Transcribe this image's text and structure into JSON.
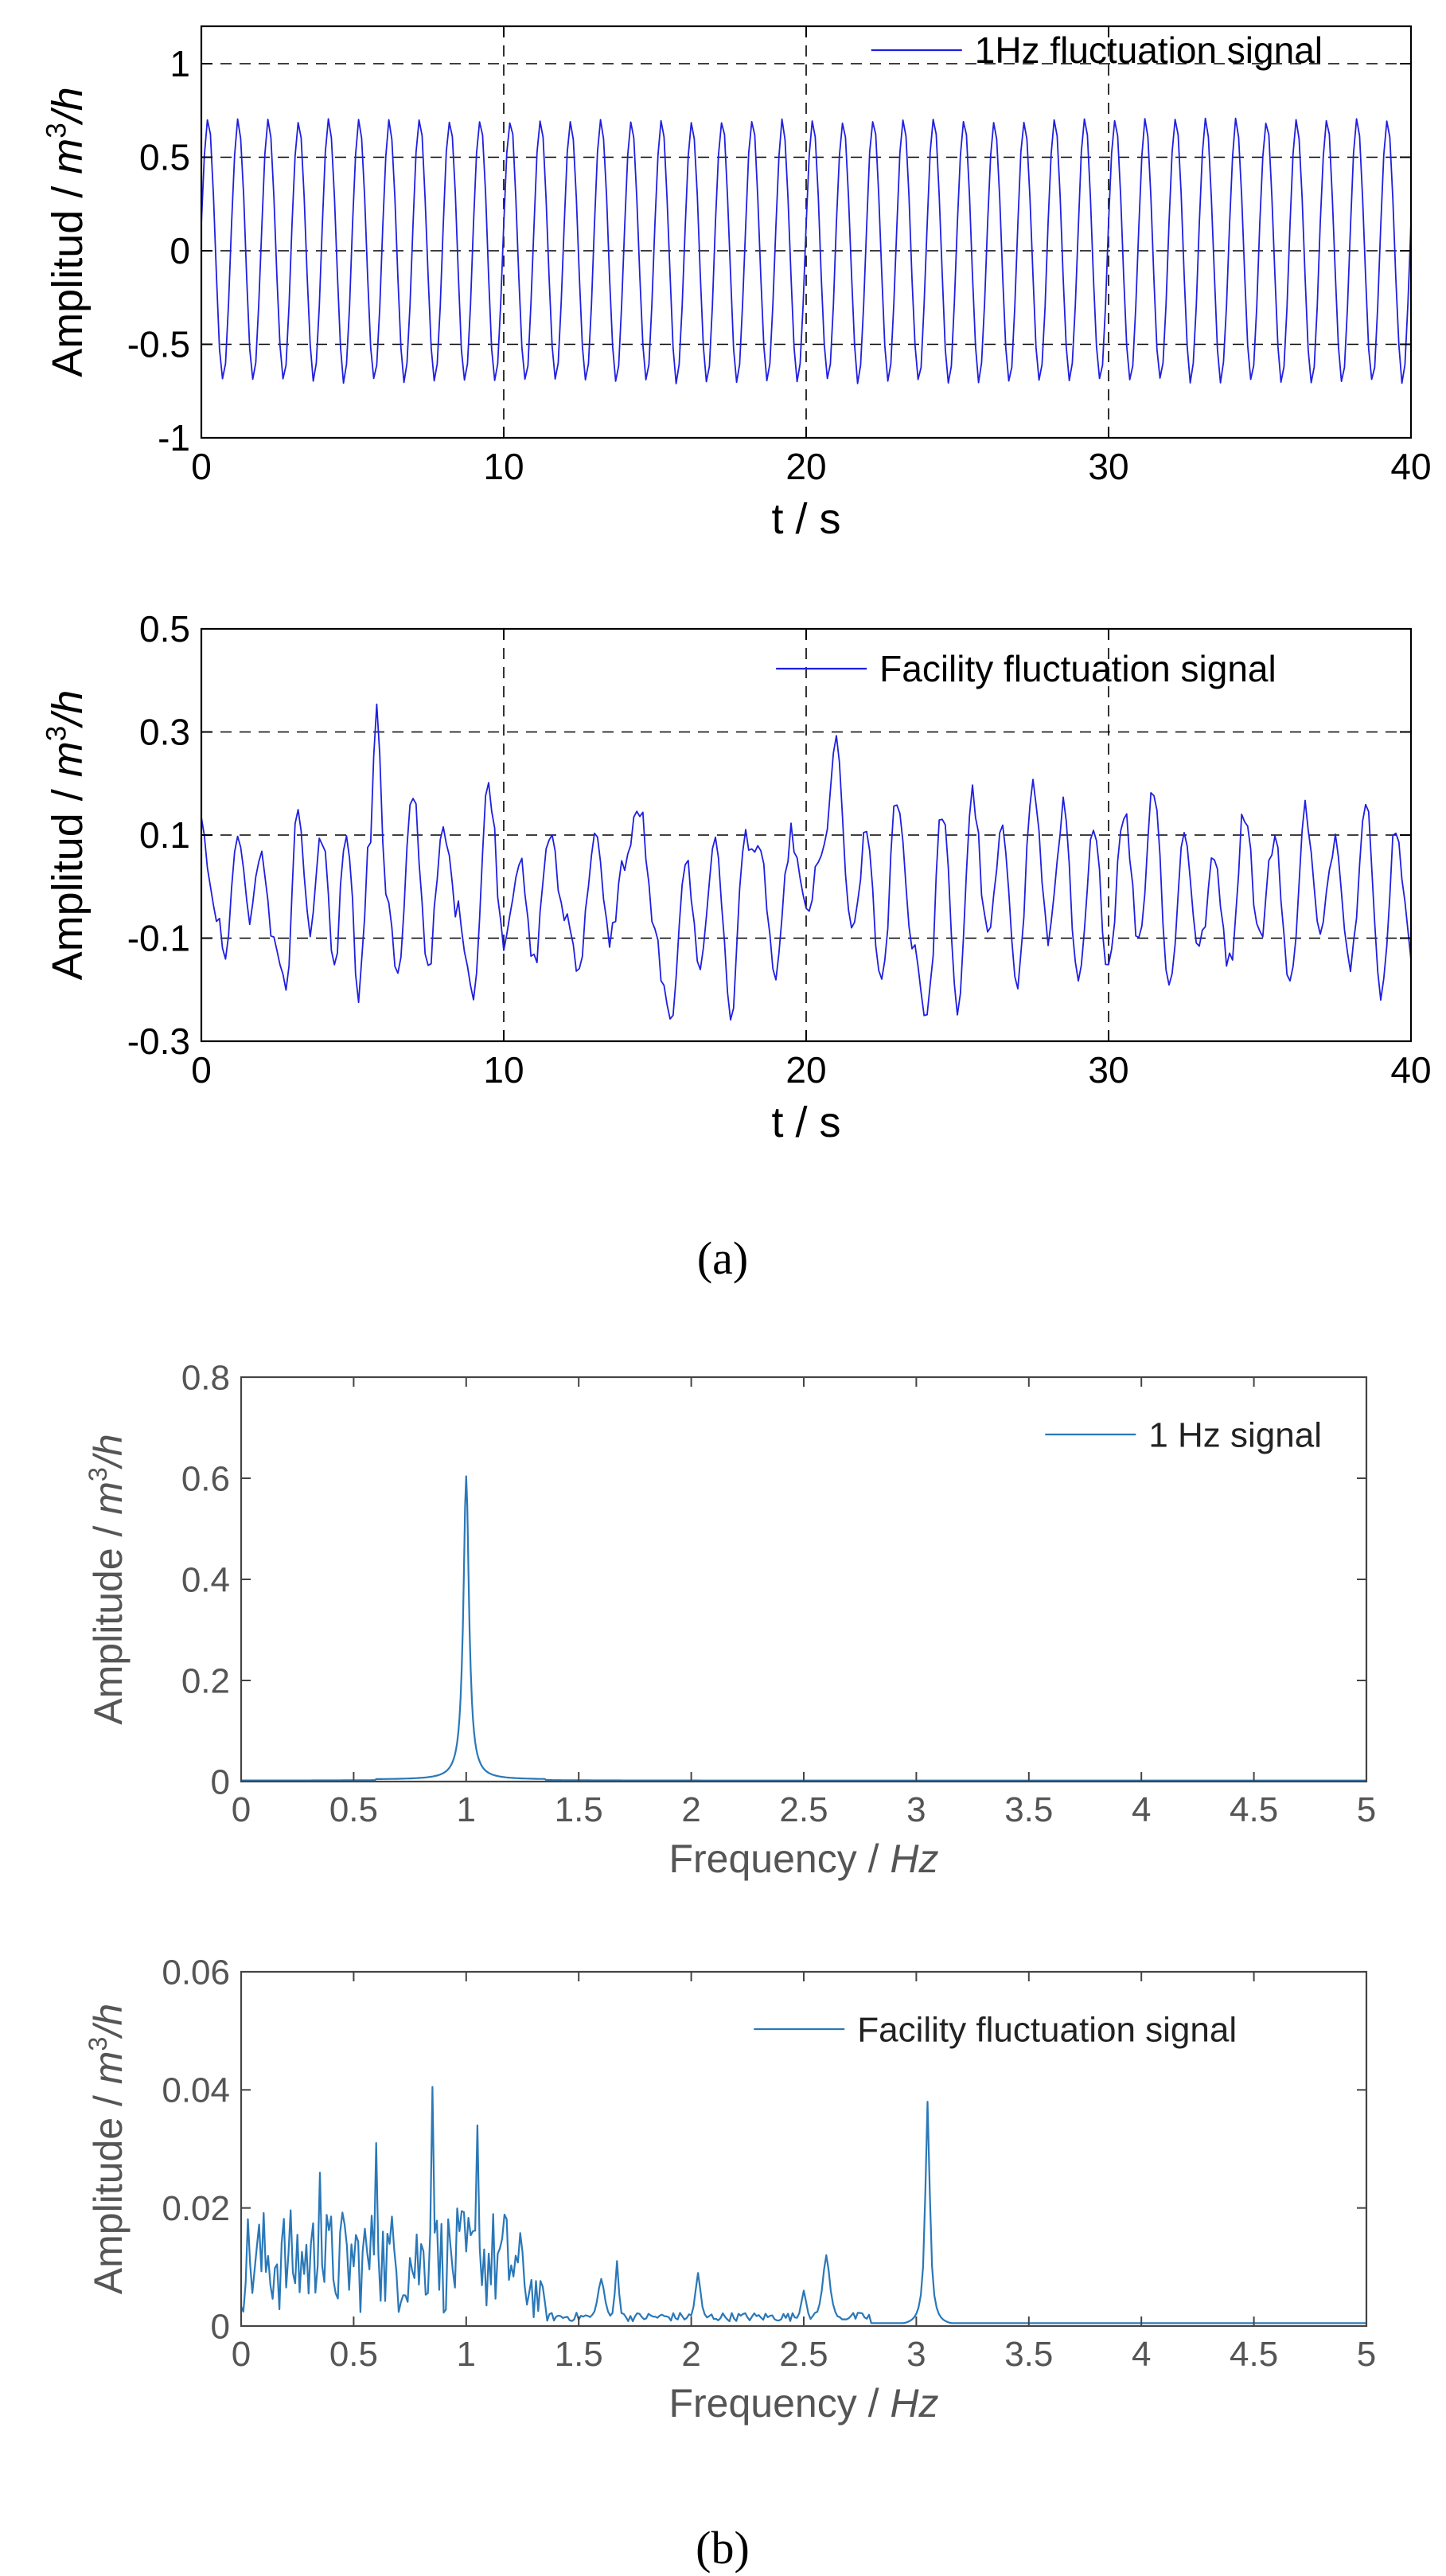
{
  "colors": {
    "series_a": "#1f1fe0",
    "series_b": "#2a78b8",
    "axis_a": "#000000",
    "axis_b": "#444444",
    "label_b": "#555555",
    "grid": "#000000"
  },
  "captions": {
    "a": "(a)",
    "b": "(b)"
  },
  "chart_data": [
    {
      "type": "line",
      "panel": "a-top",
      "title": "",
      "xlabel": "t / s",
      "ylabel": {
        "prefix": "Amplitud / ",
        "unit_base": "m",
        "unit_sup": "3",
        "unit_tail": "/h"
      },
      "xlim": [
        0,
        40
      ],
      "ylim": [
        -1,
        1.2
      ],
      "xticks": [
        0,
        10,
        20,
        30,
        40
      ],
      "yticks": [
        -1,
        -0.5,
        0,
        0.5,
        1
      ],
      "ytick_labels": [
        "-1",
        "-0.5",
        "0",
        "0.5",
        "1"
      ],
      "grid": true,
      "legend": {
        "position": "top-right",
        "entries": [
          "1Hz fluctuation signal"
        ]
      },
      "series": [
        {
          "name": "1Hz fluctuation signal",
          "generator": "sine",
          "frequency_hz": 1,
          "amplitude": 0.7,
          "sample_rate_hz": 10,
          "duration_s": 40
        }
      ]
    },
    {
      "type": "line",
      "panel": "a-bottom",
      "title": "",
      "xlabel": "t / s",
      "ylabel": {
        "prefix": "Amplitud / ",
        "unit_base": "m",
        "unit_sup": "3",
        "unit_tail": "/h"
      },
      "xlim": [
        0,
        40
      ],
      "ylim": [
        -0.3,
        0.5
      ],
      "xticks": [
        0,
        10,
        20,
        30,
        40
      ],
      "yticks": [
        -0.3,
        -0.1,
        0.1,
        0.3,
        0.5
      ],
      "ytick_labels": [
        "-0.3",
        "-0.1",
        "0.1",
        "0.3",
        "0.5"
      ],
      "grid": true,
      "legend": {
        "position": "top-right",
        "entries": [
          "Facility fluctuation signal"
        ]
      },
      "series": [
        {
          "name": "Facility fluctuation signal",
          "generator": "noise",
          "sample_rate_hz": 10,
          "duration_s": 40,
          "keypoints": [
            [
              0,
              0.15
            ],
            [
              0.4,
              -0.05
            ],
            [
              0.8,
              -0.12
            ],
            [
              1.2,
              0.1
            ],
            [
              1.6,
              -0.05
            ],
            [
              2.0,
              0.05
            ],
            [
              2.4,
              -0.1
            ],
            [
              2.8,
              -0.2
            ],
            [
              3.2,
              0.15
            ],
            [
              3.6,
              -0.1
            ],
            [
              4.0,
              0.1
            ],
            [
              4.4,
              -0.15
            ],
            [
              4.8,
              0.12
            ],
            [
              5.2,
              -0.2
            ],
            [
              5.6,
              0.1
            ],
            [
              5.8,
              0.36
            ],
            [
              6.1,
              0.0
            ],
            [
              6.5,
              -0.18
            ],
            [
              7.0,
              0.18
            ],
            [
              7.5,
              -0.15
            ],
            [
              8.0,
              0.1
            ],
            [
              8.5,
              -0.05
            ],
            [
              9.0,
              -0.2
            ],
            [
              9.5,
              0.2
            ],
            [
              10.0,
              -0.1
            ],
            [
              10.5,
              0.05
            ],
            [
              11.0,
              -0.15
            ],
            [
              11.5,
              0.1
            ],
            [
              12.0,
              -0.05
            ],
            [
              12.5,
              -0.15
            ],
            [
              13.0,
              0.1
            ],
            [
              13.5,
              -0.1
            ],
            [
              14.0,
              0.05
            ],
            [
              14.5,
              0.15
            ],
            [
              15.0,
              -0.1
            ],
            [
              15.5,
              -0.27
            ],
            [
              16.0,
              0.05
            ],
            [
              16.5,
              -0.15
            ],
            [
              17.0,
              0.1
            ],
            [
              17.5,
              -0.25
            ],
            [
              18.0,
              0.1
            ],
            [
              18.5,
              0.05
            ],
            [
              19.0,
              -0.18
            ],
            [
              19.5,
              0.1
            ],
            [
              20.0,
              -0.05
            ],
            [
              20.5,
              0.05
            ],
            [
              21.0,
              0.27
            ],
            [
              21.5,
              -0.1
            ],
            [
              22.0,
              0.1
            ],
            [
              22.5,
              -0.2
            ],
            [
              23.0,
              0.18
            ],
            [
              23.5,
              -0.1
            ],
            [
              24.0,
              -0.25
            ],
            [
              24.5,
              0.15
            ],
            [
              25.0,
              -0.24
            ],
            [
              25.5,
              0.18
            ],
            [
              26.0,
              -0.1
            ],
            [
              26.5,
              0.1
            ],
            [
              27.0,
              -0.18
            ],
            [
              27.5,
              0.2
            ],
            [
              28.0,
              -0.1
            ],
            [
              28.5,
              0.15
            ],
            [
              29.0,
              -0.2
            ],
            [
              29.5,
              0.1
            ],
            [
              30.0,
              -0.15
            ],
            [
              30.5,
              0.15
            ],
            [
              31.0,
              -0.1
            ],
            [
              31.5,
              0.2
            ],
            [
              32.0,
              -0.2
            ],
            [
              32.5,
              0.1
            ],
            [
              33.0,
              -0.12
            ],
            [
              33.5,
              0.05
            ],
            [
              34.0,
              -0.15
            ],
            [
              34.5,
              0.15
            ],
            [
              35.0,
              -0.1
            ],
            [
              35.5,
              0.1
            ],
            [
              36.0,
              -0.2
            ],
            [
              36.5,
              0.15
            ],
            [
              37.0,
              -0.1
            ],
            [
              37.5,
              0.1
            ],
            [
              38.0,
              -0.15
            ],
            [
              38.5,
              0.18
            ],
            [
              39.0,
              -0.22
            ],
            [
              39.5,
              0.12
            ],
            [
              40.0,
              -0.13
            ]
          ]
        }
      ]
    },
    {
      "type": "line",
      "panel": "b-top",
      "title": "",
      "xlabel": {
        "prefix": "Frequency / ",
        "unit": "Hz"
      },
      "ylabel": {
        "prefix": "Amplitude / ",
        "unit_base": "m",
        "unit_sup": "3",
        "unit_tail": "/h"
      },
      "xlim": [
        0,
        5
      ],
      "ylim": [
        0,
        0.8
      ],
      "xticks": [
        0,
        0.5,
        1,
        1.5,
        2,
        2.5,
        3,
        3.5,
        4,
        4.5,
        5
      ],
      "xtick_labels": [
        "0",
        "0.5",
        "1",
        "1.5",
        "2",
        "2.5",
        "3",
        "3.5",
        "4",
        "4.5",
        "5"
      ],
      "yticks": [
        0,
        0.2,
        0.4,
        0.6,
        0.8
      ],
      "ytick_labels": [
        "0",
        "0.2",
        "0.4",
        "0.6",
        "0.8"
      ],
      "grid": false,
      "legend": {
        "position": "top-right",
        "entries": [
          "1 Hz signal"
        ]
      },
      "series": [
        {
          "name": "1 Hz signal",
          "generator": "peaks",
          "step_hz": 0.005,
          "baseline": 0.002,
          "band": [
            0.6,
            1.35
          ],
          "band_level": 0.004,
          "peaks": [
            [
              1.0,
              0.6,
              0.015
            ]
          ]
        }
      ]
    },
    {
      "type": "line",
      "panel": "b-bottom",
      "title": "",
      "xlabel": {
        "prefix": "Frequency / ",
        "unit": "Hz"
      },
      "ylabel": {
        "prefix": "Amplitude / ",
        "unit_base": "m",
        "unit_sup": "3",
        "unit_tail": "/h"
      },
      "xlim": [
        0,
        5
      ],
      "ylim": [
        0,
        0.06
      ],
      "xticks": [
        0,
        0.5,
        1,
        1.5,
        2,
        2.5,
        3,
        3.5,
        4,
        4.5,
        5
      ],
      "xtick_labels": [
        "0",
        "0.5",
        "1",
        "1.5",
        "2",
        "2.5",
        "3",
        "3.5",
        "4",
        "4.5",
        "5"
      ],
      "yticks": [
        0,
        0.02,
        0.04,
        0.06
      ],
      "ytick_labels": [
        "0",
        "0.02",
        "0.04",
        "0.06"
      ],
      "grid": false,
      "legend": {
        "position": "top-right",
        "entries": [
          "Facility fluctuation signal"
        ]
      },
      "series": [
        {
          "name": "Facility fluctuation signal",
          "generator": "spectrum",
          "step_hz": 0.01,
          "noise_band": [
            0,
            1.35
          ],
          "noise_mean": 0.011,
          "noise_spread": 0.009,
          "peaks": [
            [
              0.35,
              0.026,
              0.008
            ],
            [
              0.6,
              0.031,
              0.008
            ],
            [
              0.85,
              0.0405,
              0.008
            ],
            [
              1.05,
              0.034,
              0.008
            ],
            [
              1.6,
              0.008,
              0.02
            ],
            [
              1.67,
              0.011,
              0.01
            ],
            [
              2.03,
              0.009,
              0.015
            ],
            [
              2.5,
              0.006,
              0.015
            ],
            [
              2.6,
              0.012,
              0.02
            ],
            [
              3.05,
              0.038,
              0.012
            ]
          ]
        }
      ]
    }
  ]
}
